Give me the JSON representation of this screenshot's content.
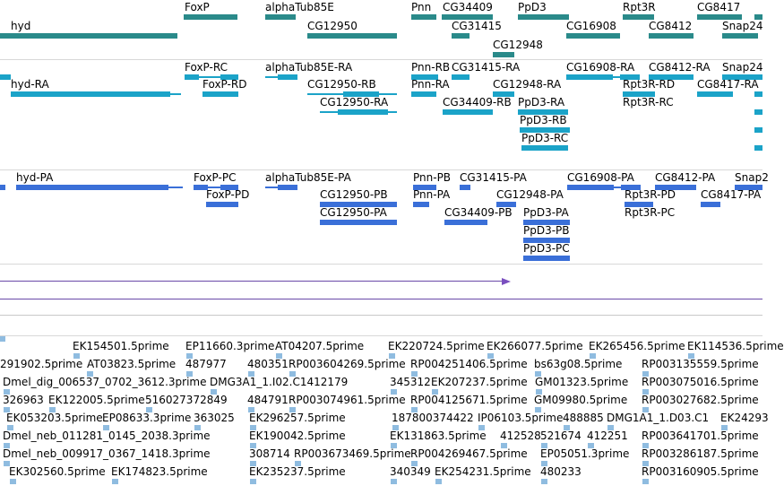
{
  "tracks": {
    "genes": {
      "color": "#2a8a8a",
      "labels": [
        "FoxP",
        "alphaTub85E",
        "Pnn",
        "CG34409",
        "PpD3",
        "Rpt3R",
        "CG8417",
        "hyd",
        "CG12950",
        "CG31415",
        "CG16908",
        "CG8412",
        "Snap24",
        "CG12948"
      ]
    },
    "transcripts_1": {
      "color": "#1ba3c8",
      "labels": [
        "FoxP-RC",
        "alphaTub85E-RA",
        "Pnn-RB",
        "CG31415-RA",
        "CG16908-RA",
        "CG8412-RA",
        "Snap24",
        "hyd-RA",
        "FoxP-RD",
        "CG12950-RB",
        "Pnn-RA",
        "CG12948-RA",
        "Rpt3R-RD",
        "CG8417-RA",
        "CG12950-RA",
        "CG34409-RB",
        "PpD3-RA",
        "Rpt3R-RC",
        "PpD3-RB",
        "PpD3-RC"
      ]
    },
    "transcripts_2": {
      "color": "#3a6fd8",
      "labels": [
        "hyd-PA",
        "FoxP-PC",
        "alphaTub85E-PA",
        "Pnn-PB",
        "CG31415-PA",
        "CG16908-PA",
        "CG8412-PA",
        "Snap2",
        "FoxP-PD",
        "CG12950-PB",
        "Pnn-PA",
        "CG12948-PA",
        "Rpt3R-PD",
        "CG8417-PA",
        "CG12950-PA",
        "CG34409-PB",
        "PpD3-PA",
        "Rpt3R-PC",
        "PpD3-PB",
        "PpD3-PC"
      ]
    },
    "ests": {
      "color": "#8fbce0",
      "rows": [
        [
          "EK154501.5prime",
          "EP11660.3prime",
          "AT04207.5prime",
          "EK220724.5prime",
          "EK266077.5prime",
          "EK265456.5prime",
          "EK114536.5prime"
        ],
        [
          "291902.5prime",
          "AT03823.5prime",
          "487977",
          "480351",
          "RP003604269.5prime",
          "RP004251406.5prime",
          "bs63g08.5prime",
          "RP003135559.5prime"
        ],
        [
          "Dmel_dig_006537_0702_3612.3prime",
          "DMG3A1_1.I02.C1412179",
          "345312",
          "EK207237.5prime",
          "GM01323.5prime",
          "RP003075016.5prime"
        ],
        [
          "326963",
          "EK122005.5prime",
          "516027372849",
          "484791",
          "RP003074961.5prime",
          "RP004125671.5prime",
          "GM09980.5prime",
          "RP003027682.5prime"
        ],
        [
          "EK053203.5prime",
          "EP08633.3prime",
          "363025",
          "EK296257.5prime",
          "187800374422",
          "IP06103.5prime",
          "488885",
          "DMG1A1_1.D03.C1",
          "EK24293"
        ],
        [
          "Dmel_neb_011281_0145_2038.3prime",
          "EK190042.5prime",
          "EK131863.5prime",
          "412528",
          "521674",
          "412251",
          "RP003641701.5prime"
        ],
        [
          "Dmel_neb_009917_0367_1418.3prime",
          "308714",
          "RP003673469.5prime",
          "RP004269467.5prime",
          "EP05051.3prime",
          "RP003286187.5prime"
        ],
        [
          "EK302560.5prime",
          "EK174823.5prime",
          "EK235237.5prime",
          "340349",
          "EK254231.5prime",
          "480233",
          "RP003160905.5prime"
        ]
      ]
    },
    "scale": {
      "arrow_color": "#7a4fbf",
      "line_color": "#6a4aa8"
    }
  }
}
